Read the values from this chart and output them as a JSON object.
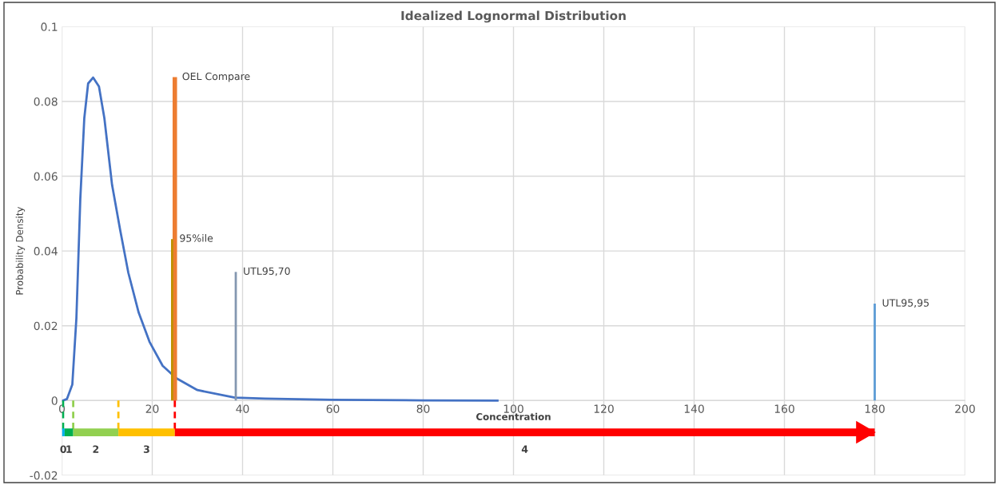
{
  "chart_data": {
    "type": "line",
    "title": "Idealized Lognormal Distribution",
    "xlabel": "Concentration",
    "ylabel": "Probability Density",
    "xlim": [
      0,
      200
    ],
    "xticks": [
      0,
      20,
      40,
      60,
      80,
      100,
      120,
      140,
      160,
      180,
      200
    ],
    "ylim": [
      -0.02,
      0.1
    ],
    "yticks": [
      -0.02,
      0,
      0.02,
      0.04,
      0.06,
      0.08,
      0.1
    ],
    "grid": true,
    "legend": false,
    "series": [
      {
        "color": "#4472c4",
        "x": [
          0,
          0.23,
          1.1,
          2.3,
          3.2,
          4.07,
          4.95,
          5.8,
          6.9,
          8.2,
          9.4,
          11.1,
          12.9,
          14.7,
          17.0,
          19.4,
          22.3,
          25.3,
          30.0,
          38.3,
          45,
          60,
          80,
          96.7
        ],
        "values": [
          0,
          0,
          0.0004,
          0.0043,
          0.022,
          0.054,
          0.0755,
          0.0848,
          0.0864,
          0.084,
          0.0755,
          0.0577,
          0.0456,
          0.0342,
          0.0235,
          0.0157,
          0.0093,
          0.006,
          0.0028,
          0.0008,
          0.0005,
          0.0002,
          5e-05,
          0
        ]
      },
      {
        "name": "OEL Compare",
        "color": "#ed7d31",
        "x": [
          25,
          25
        ],
        "values": [
          0,
          0.0865
        ]
      },
      {
        "name": "95%ile",
        "color": "#bf9000",
        "x": [
          24.4,
          24.4
        ],
        "values": [
          0,
          0.0432
        ]
      },
      {
        "name": "UTL95,70",
        "color": "#8497b0",
        "x": [
          38.5,
          38.5
        ],
        "values": [
          0,
          0.0344
        ]
      },
      {
        "name": "UTL95,95",
        "color": "#5b9bd5",
        "x": [
          180,
          180
        ],
        "values": [
          0,
          0.0259
        ]
      },
      {
        "color": "#00b050",
        "x": [
          0.25,
          0.25
        ],
        "values": [
          0,
          -0.0085
        ],
        "line_style": "dashed"
      },
      {
        "color": "#92d050",
        "x": [
          2.5,
          2.5
        ],
        "values": [
          0,
          -0.0085
        ],
        "line_style": "dashed"
      },
      {
        "color": "#ffc000",
        "x": [
          12.5,
          12.5
        ],
        "values": [
          0,
          -0.0085
        ],
        "line_style": "dashed"
      },
      {
        "color": "#ff0000",
        "x": [
          25,
          25
        ],
        "values": [
          0,
          -0.0085
        ],
        "line_style": "dashed"
      },
      {
        "color": "#00b0f0",
        "x": [
          0,
          0.6
        ],
        "values": [
          -0.0085,
          -0.0085
        ]
      },
      {
        "color": "#00b050",
        "x": [
          0.6,
          2.5
        ],
        "values": [
          -0.0085,
          -0.0085
        ]
      },
      {
        "color": "#92d050",
        "x": [
          2.5,
          12.5
        ],
        "values": [
          -0.0085,
          -0.0085
        ]
      },
      {
        "color": "#ffc000",
        "x": [
          12.5,
          25
        ],
        "values": [
          -0.0085,
          -0.0085
        ]
      },
      {
        "color": "#ff0000",
        "x": [
          25,
          180
        ],
        "values": [
          -0.0085,
          -0.0085
        ]
      }
    ],
    "annotations": [
      "0",
      "1",
      "2",
      "3",
      "4"
    ]
  }
}
